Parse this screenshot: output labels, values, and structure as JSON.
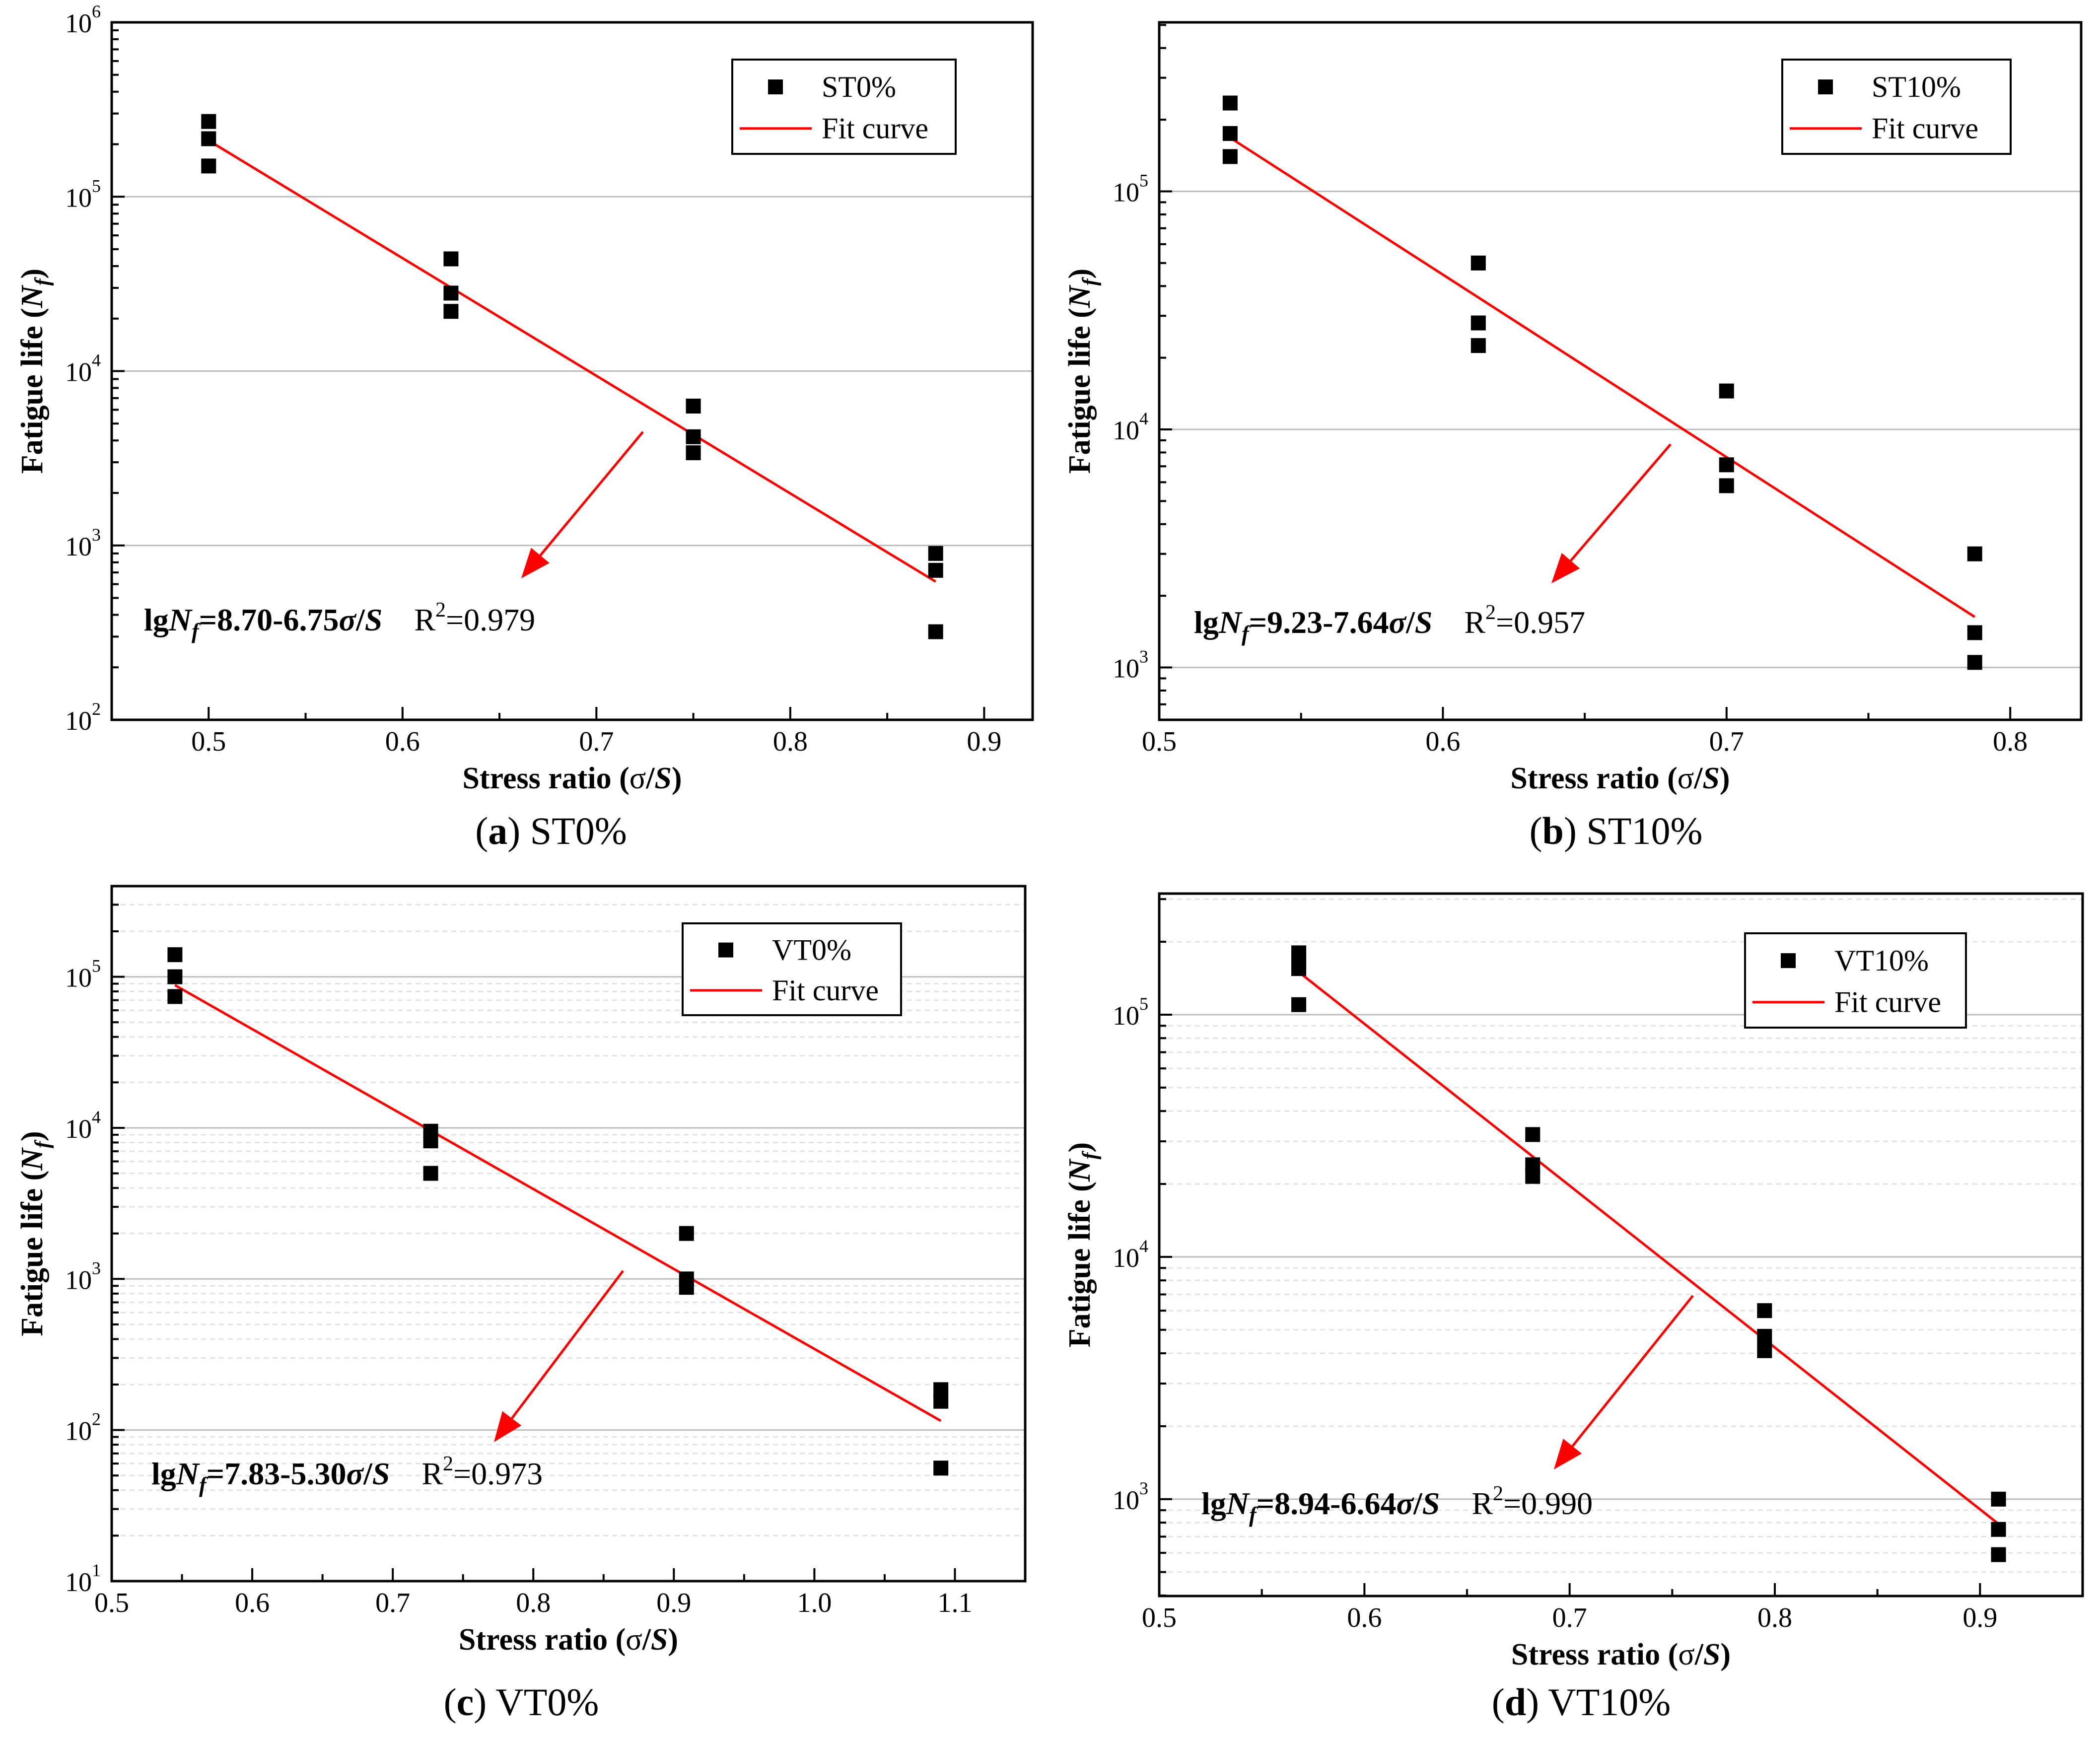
{
  "panels": [
    {
      "id": "a",
      "caption": {
        "letter": "a",
        "text": "ST0%"
      },
      "chart_data": {
        "type": "scatter",
        "title": "",
        "xlabel": {
          "prefix": "Stress ratio (",
          "sigma": "σ",
          "slash": "/",
          "S": "S",
          "suffix": ")"
        },
        "ylabel": {
          "prefix": "Fatigue life (",
          "N": "N",
          "sub": "f",
          "suffix": ")"
        },
        "xlim": [
          0.45,
          0.925
        ],
        "xticks": [
          "0.5",
          "0.6",
          "0.7",
          "0.8",
          "0.9"
        ],
        "yscale": "log",
        "ylim_exp": [
          2,
          6
        ],
        "ytick_exps": [
          2,
          3,
          4,
          5,
          6
        ],
        "grid": "horizontal major",
        "legend": {
          "placement": "top-right",
          "points_label": "ST0%",
          "fit_label": "Fit curve"
        },
        "points": [
          [
            0.5,
            270000
          ],
          [
            0.5,
            215000
          ],
          [
            0.5,
            150000
          ],
          [
            0.625,
            44000
          ],
          [
            0.625,
            28000
          ],
          [
            0.625,
            22000
          ],
          [
            0.75,
            6300
          ],
          [
            0.75,
            4200
          ],
          [
            0.75,
            3400
          ],
          [
            0.875,
            900
          ],
          [
            0.875,
            720
          ],
          [
            0.875,
            320
          ]
        ],
        "fit": {
          "x": [
            0.5,
            0.875
          ],
          "y": [
            210000,
            620
          ]
        },
        "equation": {
          "lg": "lg",
          "N": "N",
          "sub": "f",
          "body": "=8.70-6.75",
          "sigma": "σ",
          "slash": "/",
          "S": "S",
          "r2": "R",
          "r2sup": "2",
          "r2val": "=0.979"
        }
      }
    },
    {
      "id": "b",
      "caption": {
        "letter": "b",
        "text": "ST10%"
      },
      "chart_data": {
        "type": "scatter",
        "title": "",
        "xlabel": {
          "prefix": "Stress ratio (",
          "sigma": "σ",
          "slash": "/",
          "S": "S",
          "suffix": ")"
        },
        "ylabel": {
          "prefix": "Fatigue life (",
          "N": "N",
          "sub": "f",
          "suffix": ")"
        },
        "xlim": [
          0.5,
          0.825
        ],
        "xticks": [
          "0.5",
          "0.6",
          "0.7",
          "0.8"
        ],
        "yscale": "log",
        "ylim_exp": [
          2.78,
          5.71
        ],
        "ytick_exps": [
          3,
          4,
          5
        ],
        "grid": "horizontal major",
        "legend": {
          "placement": "top-right",
          "points_label": "ST10%",
          "fit_label": "Fit curve"
        },
        "points": [
          [
            0.525,
            235000
          ],
          [
            0.525,
            175000
          ],
          [
            0.525,
            140000
          ],
          [
            0.6125,
            50000
          ],
          [
            0.6125,
            28000
          ],
          [
            0.6125,
            22500
          ],
          [
            0.7,
            14500
          ],
          [
            0.7,
            7100
          ],
          [
            0.7,
            5800
          ],
          [
            0.7875,
            3000
          ],
          [
            0.7875,
            1400
          ],
          [
            0.7875,
            1050
          ]
        ],
        "fit": {
          "x": [
            0.525,
            0.7875
          ],
          "y": [
            168000,
            1630
          ]
        },
        "equation": {
          "lg": "lg",
          "N": "N",
          "sub": "f",
          "body": "=9.23-7.64",
          "sigma": "σ",
          "slash": "/",
          "S": "S",
          "r2": "R",
          "r2sup": "2",
          "r2val": "=0.957"
        }
      }
    },
    {
      "id": "c",
      "caption": {
        "letter": "c",
        "text": "VT0%"
      },
      "chart_data": {
        "type": "scatter",
        "title": "",
        "xlabel": {
          "prefix": "Stress ratio (",
          "sigma": "σ",
          "slash": "/",
          "S": "S",
          "suffix": ")"
        },
        "ylabel": {
          "prefix": "Fatigue life (",
          "N": "N",
          "sub": "f",
          "suffix": ")"
        },
        "xlim": [
          0.5,
          1.15
        ],
        "xticks": [
          "0.5",
          "0.6",
          "0.7",
          "0.8",
          "0.9",
          "1.0",
          "1.1"
        ],
        "yscale": "log",
        "ylim_exp": [
          1,
          5.6
        ],
        "ytick_exps": [
          1,
          2,
          3,
          4,
          5
        ],
        "grid": "horizontal major and minor",
        "legend": {
          "placement": "top-right",
          "points_label": "VT0%",
          "fit_label": "Fit curve"
        },
        "points": [
          [
            0.545,
            140000
          ],
          [
            0.545,
            100000
          ],
          [
            0.545,
            74000
          ],
          [
            0.727,
            9500
          ],
          [
            0.727,
            8200
          ],
          [
            0.727,
            5000
          ],
          [
            0.909,
            2000
          ],
          [
            0.909,
            1000
          ],
          [
            0.909,
            880
          ],
          [
            1.09,
            185
          ],
          [
            1.09,
            155
          ],
          [
            1.09,
            56
          ]
        ],
        "fit": {
          "x": [
            0.545,
            1.09
          ],
          "y": [
            88000,
            115
          ]
        },
        "equation": {
          "lg": "lg",
          "N": "N",
          "sub": "f",
          "body": "=7.83-5.30",
          "sigma": "σ",
          "slash": "/",
          "S": "S",
          "r2": "R",
          "r2sup": "2",
          "r2val": "=0.973"
        }
      }
    },
    {
      "id": "d",
      "caption": {
        "letter": "d",
        "text": "VT10%"
      },
      "chart_data": {
        "type": "scatter",
        "title": "",
        "xlabel": {
          "prefix": "Stress ratio (",
          "sigma": "σ",
          "slash": "/",
          "S": "S",
          "suffix": ")"
        },
        "ylabel": {
          "prefix": "Fatigue life (",
          "N": "N",
          "sub": "f",
          "suffix": ")"
        },
        "xlim": [
          0.5,
          0.95
        ],
        "xticks": [
          "0.5",
          "0.6",
          "0.7",
          "0.8",
          "0.9"
        ],
        "yscale": "log",
        "ylim_exp": [
          2.6,
          5.5
        ],
        "ytick_exps": [
          3,
          4,
          5
        ],
        "grid": "horizontal major and minor",
        "legend": {
          "placement": "top-right",
          "points_label": "VT10%",
          "fit_label": "Fit curve"
        },
        "points": [
          [
            0.568,
            180000
          ],
          [
            0.568,
            165000
          ],
          [
            0.568,
            155000
          ],
          [
            0.568,
            110000
          ],
          [
            0.682,
            32000
          ],
          [
            0.682,
            24000
          ],
          [
            0.682,
            21500
          ],
          [
            0.795,
            6000
          ],
          [
            0.795,
            4700
          ],
          [
            0.795,
            4100
          ],
          [
            0.909,
            1000
          ],
          [
            0.909,
            750
          ],
          [
            0.909,
            590
          ]
        ],
        "fit": {
          "x": [
            0.568,
            0.909
          ],
          "y": [
            150000,
            790
          ]
        },
        "equation": {
          "lg": "lg",
          "N": "N",
          "sub": "f",
          "body": "=8.94-6.64",
          "sigma": "σ",
          "slash": "/",
          "S": "S",
          "r2": "R",
          "r2sup": "2",
          "r2val": "=0.990"
        }
      }
    }
  ]
}
